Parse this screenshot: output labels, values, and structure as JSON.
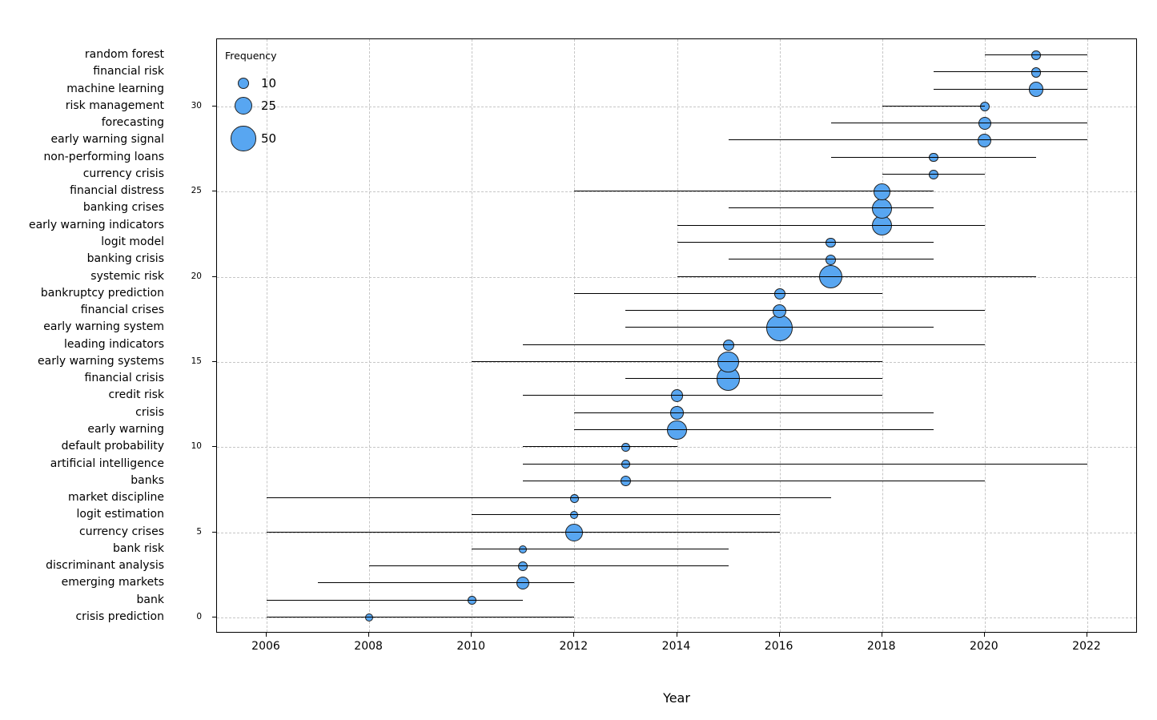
{
  "chart_data": {
    "type": "scatter",
    "variant": "trend-topics-bubble-timeline",
    "title": "",
    "xlabel": "Year",
    "x_ticks": [
      2006,
      2008,
      2010,
      2012,
      2014,
      2016,
      2018,
      2020,
      2022
    ],
    "y_ticks": [
      0,
      5,
      10,
      15,
      20,
      25,
      30
    ],
    "xlim": [
      2005.05,
      2023.0
    ],
    "ylim": [
      -1,
      34
    ],
    "grid": "dashed",
    "legend": {
      "title": "Frequency",
      "sizes": [
        10,
        25,
        50
      ],
      "position": "upper-left"
    },
    "encoding_note": "Each term: horizontal line spans first-to-last year; bubble centered on peak year; bubble area encodes frequency.",
    "items": [
      {
        "y": 0,
        "term": "crisis prediction",
        "year_start": 2006,
        "year_end": 2012,
        "peak_year": 2008,
        "frequency": 5
      },
      {
        "y": 1,
        "term": "bank",
        "year_start": 2006,
        "year_end": 2011,
        "peak_year": 2010,
        "frequency": 6
      },
      {
        "y": 2,
        "term": "emerging markets",
        "year_start": 2007,
        "year_end": 2012,
        "peak_year": 2011,
        "frequency": 13
      },
      {
        "y": 3,
        "term": "discriminant analysis",
        "year_start": 2008,
        "year_end": 2015,
        "peak_year": 2011,
        "frequency": 7
      },
      {
        "y": 4,
        "term": "bank risk",
        "year_start": 2010,
        "year_end": 2015,
        "peak_year": 2011,
        "frequency": 5
      },
      {
        "y": 5,
        "term": "currency crises",
        "year_start": 2006,
        "year_end": 2016,
        "peak_year": 2012,
        "frequency": 25
      },
      {
        "y": 6,
        "term": "logit estimation",
        "year_start": 2010,
        "year_end": 2016,
        "peak_year": 2012,
        "frequency": 5
      },
      {
        "y": 7,
        "term": "market discipline",
        "year_start": 2006,
        "year_end": 2017,
        "peak_year": 2012,
        "frequency": 6
      },
      {
        "y": 8,
        "term": "banks",
        "year_start": 2011,
        "year_end": 2020,
        "peak_year": 2013,
        "frequency": 9
      },
      {
        "y": 9,
        "term": "artificial intelligence",
        "year_start": 2011,
        "year_end": 2022,
        "peak_year": 2013,
        "frequency": 6
      },
      {
        "y": 10,
        "term": "default probability",
        "year_start": 2011,
        "year_end": 2014,
        "peak_year": 2013,
        "frequency": 6
      },
      {
        "y": 11,
        "term": "early warning",
        "year_start": 2012,
        "year_end": 2019,
        "peak_year": 2014,
        "frequency": 30
      },
      {
        "y": 12,
        "term": "crisis",
        "year_start": 2012,
        "year_end": 2019,
        "peak_year": 2014,
        "frequency": 14
      },
      {
        "y": 13,
        "term": "credit risk",
        "year_start": 2011,
        "year_end": 2018,
        "peak_year": 2014,
        "frequency": 13
      },
      {
        "y": 14,
        "term": "financial crisis",
        "year_start": 2013,
        "year_end": 2018,
        "peak_year": 2015,
        "frequency": 45
      },
      {
        "y": 15,
        "term": "early warning systems",
        "year_start": 2010,
        "year_end": 2018,
        "peak_year": 2015,
        "frequency": 36
      },
      {
        "y": 16,
        "term": "leading indicators",
        "year_start": 2011,
        "year_end": 2020,
        "peak_year": 2015,
        "frequency": 10
      },
      {
        "y": 17,
        "term": "early warning system",
        "year_start": 2013,
        "year_end": 2019,
        "peak_year": 2016,
        "frequency": 55
      },
      {
        "y": 18,
        "term": "financial crises",
        "year_start": 2013,
        "year_end": 2020,
        "peak_year": 2016,
        "frequency": 15
      },
      {
        "y": 19,
        "term": "bankruptcy prediction",
        "year_start": 2012,
        "year_end": 2018,
        "peak_year": 2016,
        "frequency": 10
      },
      {
        "y": 20,
        "term": "systemic risk",
        "year_start": 2014,
        "year_end": 2021,
        "peak_year": 2017,
        "frequency": 43
      },
      {
        "y": 21,
        "term": "banking crisis",
        "year_start": 2015,
        "year_end": 2019,
        "peak_year": 2017,
        "frequency": 9
      },
      {
        "y": 22,
        "term": "logit model",
        "year_start": 2014,
        "year_end": 2019,
        "peak_year": 2017,
        "frequency": 8
      },
      {
        "y": 23,
        "term": "early warning indicators",
        "year_start": 2014,
        "year_end": 2020,
        "peak_year": 2018,
        "frequency": 33
      },
      {
        "y": 24,
        "term": "banking crises",
        "year_start": 2015,
        "year_end": 2019,
        "peak_year": 2018,
        "frequency": 32
      },
      {
        "y": 25,
        "term": "financial distress",
        "year_start": 2012,
        "year_end": 2019,
        "peak_year": 2018,
        "frequency": 22
      },
      {
        "y": 26,
        "term": "currency crisis",
        "year_start": 2018,
        "year_end": 2020,
        "peak_year": 2019,
        "frequency": 7
      },
      {
        "y": 27,
        "term": "non-performing loans",
        "year_start": 2017,
        "year_end": 2021,
        "peak_year": 2019,
        "frequency": 7
      },
      {
        "y": 28,
        "term": "early warning signal",
        "year_start": 2015,
        "year_end": 2022,
        "peak_year": 2020,
        "frequency": 15
      },
      {
        "y": 29,
        "term": "forecasting",
        "year_start": 2017,
        "year_end": 2022,
        "peak_year": 2020,
        "frequency": 13
      },
      {
        "y": 30,
        "term": "risk management",
        "year_start": 2018,
        "year_end": 2020,
        "peak_year": 2020,
        "frequency": 8
      },
      {
        "y": 31,
        "term": "machine learning",
        "year_start": 2019,
        "year_end": 2022,
        "peak_year": 2021,
        "frequency": 18
      },
      {
        "y": 32,
        "term": "financial risk",
        "year_start": 2019,
        "year_end": 2022,
        "peak_year": 2021,
        "frequency": 8
      },
      {
        "y": 33,
        "term": "random forest",
        "year_start": 2020,
        "year_end": 2022,
        "peak_year": 2021,
        "frequency": 7
      }
    ]
  },
  "colors": {
    "bubble_fill": "#58a6f1",
    "bubble_edge": "#1f1f1f",
    "range_line": "#000000",
    "grid": "#c6c6c6",
    "frame": "#000000",
    "background": "#ffffff"
  }
}
